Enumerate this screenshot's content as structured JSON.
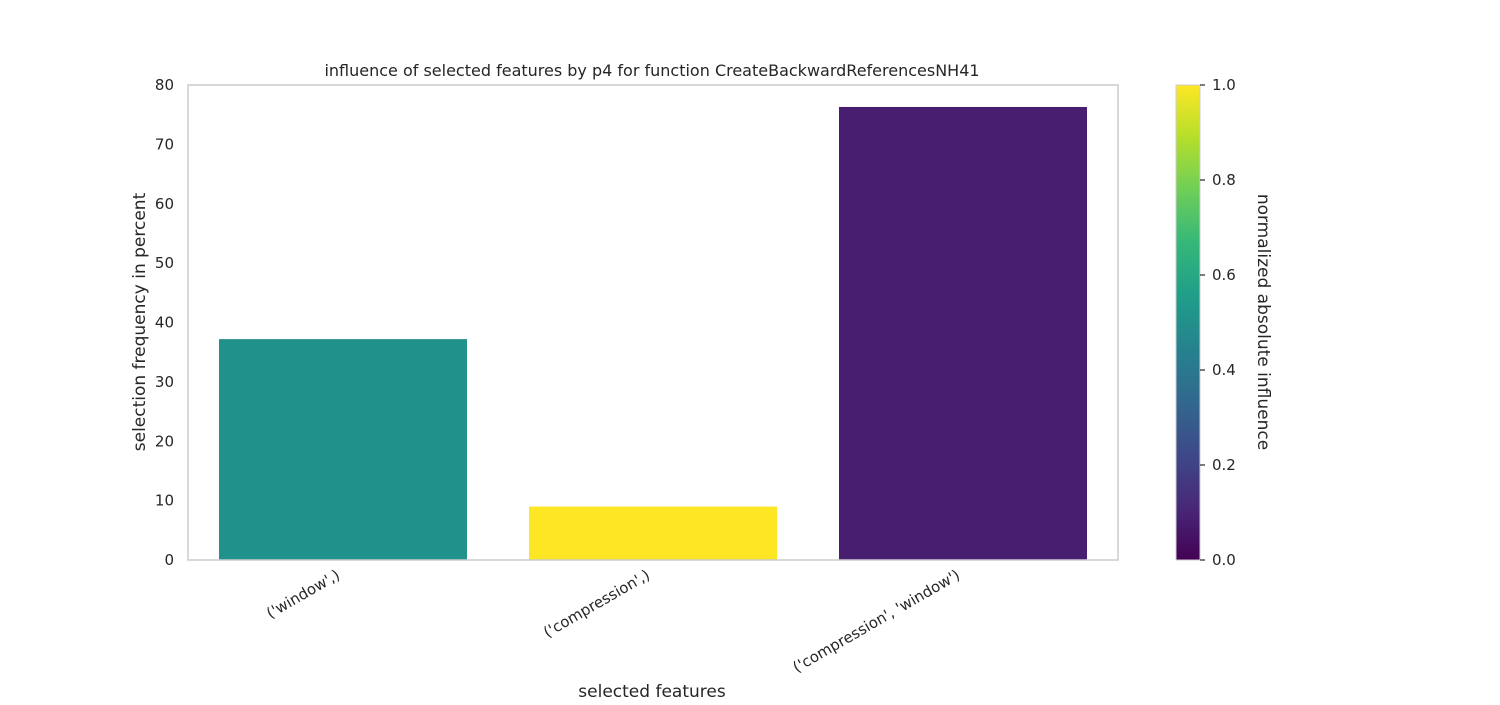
{
  "chart_data": {
    "type": "bar",
    "title": "influence of selected features by p4 for function CreateBackwardReferencesNH41",
    "xlabel": "selected features",
    "ylabel": "selection frequency in percent",
    "categories": [
      "('window',)",
      "('compression',)",
      "('compression', 'window')"
    ],
    "values": [
      37.2,
      9.0,
      76.3
    ],
    "bar_colors": [
      "#21918c",
      "#fde725",
      "#481f70"
    ],
    "ylim": [
      0,
      80
    ],
    "yticks": [
      "0",
      "10",
      "20",
      "30",
      "40",
      "50",
      "60",
      "70",
      "80"
    ],
    "grid": false,
    "colorbar": {
      "label": "normalized absolute influence",
      "range": [
        0.0,
        1.0
      ],
      "ticks": [
        "0.0",
        "0.2",
        "0.4",
        "0.6",
        "0.8",
        "1.0"
      ],
      "colormap": "viridis",
      "stops": [
        "#440154",
        "#482878",
        "#3e4989",
        "#31688e",
        "#26828e",
        "#1f9e89",
        "#35b779",
        "#6ece58",
        "#b5de2b",
        "#fde725"
      ]
    }
  }
}
